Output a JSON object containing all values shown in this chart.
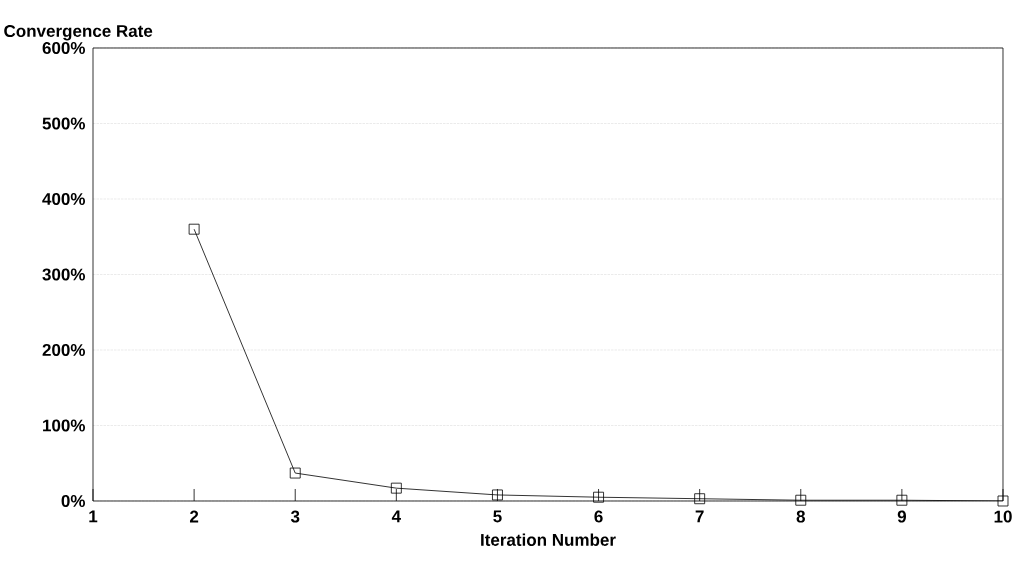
{
  "chart_data": {
    "type": "line",
    "ylabel": "Convergence Rate",
    "xlabel": "Iteration Number",
    "x": [
      2,
      3,
      4,
      5,
      6,
      7,
      8,
      9,
      10
    ],
    "series": [
      {
        "color": "#000000",
        "values": [
          360,
          37,
          17,
          8,
          5,
          3,
          1,
          1,
          0
        ]
      }
    ],
    "xlim": [
      1,
      10
    ],
    "xticks": [
      1,
      2,
      3,
      4,
      5,
      6,
      7,
      8,
      9,
      10
    ],
    "ylim": [
      0,
      600
    ],
    "yticks": [
      {
        "value": 0,
        "label": "0%"
      },
      {
        "value": 100,
        "label": "100%"
      },
      {
        "value": 200,
        "label": "200%"
      },
      {
        "value": 300,
        "label": "300%"
      },
      {
        "value": 400,
        "label": "400%"
      },
      {
        "value": 500,
        "label": "500%"
      },
      {
        "value": 600,
        "label": "600%"
      }
    ],
    "grid": "y",
    "marker": "square",
    "line_style": "solid"
  }
}
